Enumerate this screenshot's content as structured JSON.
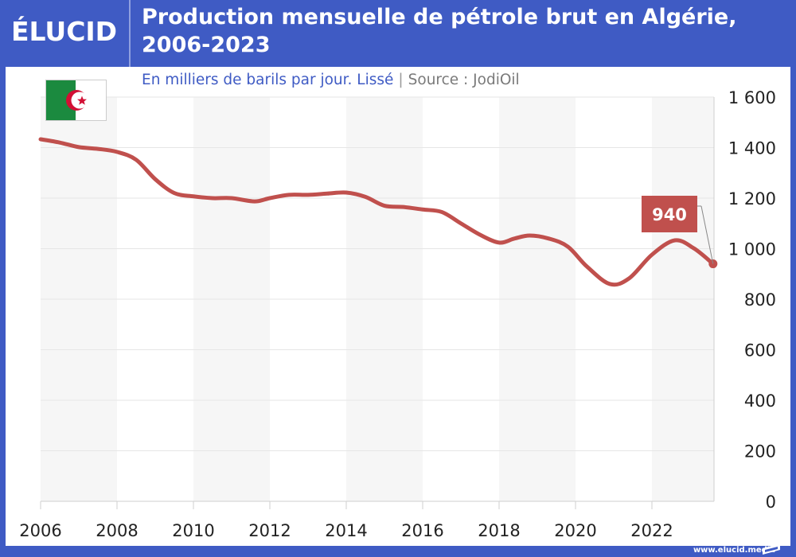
{
  "header": {
    "logo": "ÉLUCID",
    "title_line1": "Production mensuelle de pétrole brut en Algérie,",
    "title_line2": "2006-2023"
  },
  "subtitle": {
    "unit": "En milliers de barils par jour. Lissé",
    "separator": "|",
    "source": "Source : JodiOil"
  },
  "flag": {
    "country": "Algérie",
    "icon": "algeria-flag-icon"
  },
  "footer": {
    "url": "www.elucid.media"
  },
  "colors": {
    "brand": "#3f5bc4",
    "line": "#c0504d",
    "band": "#f6f6f6",
    "grid": "#e6e6e6"
  },
  "chart_data": {
    "type": "line",
    "title": "Production mensuelle de pétrole brut en Algérie, 2006-2023",
    "subtitle": "En milliers de barils par jour. Lissé",
    "xlabel": "",
    "ylabel": "",
    "xlim": [
      2006,
      2023.6
    ],
    "ylim": [
      0,
      1600
    ],
    "x_ticks": [
      2006,
      2008,
      2010,
      2012,
      2014,
      2016,
      2018,
      2020,
      2022
    ],
    "x_tick_labels": [
      "2006",
      "2008",
      "2010",
      "2012",
      "2014",
      "2016",
      "2018",
      "2020",
      "2022"
    ],
    "y_ticks": [
      0,
      200,
      400,
      600,
      800,
      1000,
      1200,
      1400,
      1600
    ],
    "y_tick_labels": [
      "0",
      "200",
      "400",
      "600",
      "800",
      "1 000",
      "1 200",
      "1 400",
      "1 600"
    ],
    "y_axis_side": "right",
    "grid": true,
    "legend": "none",
    "series": [
      {
        "name": "Production de pétrole brut",
        "x": [
          2006.0,
          2006.5,
          2007.0,
          2007.5,
          2008.0,
          2008.5,
          2009.0,
          2009.5,
          2010.0,
          2010.5,
          2011.0,
          2011.6,
          2012.0,
          2012.5,
          2013.0,
          2013.5,
          2014.0,
          2014.5,
          2015.0,
          2015.5,
          2016.0,
          2016.5,
          2017.0,
          2017.5,
          2018.0,
          2018.4,
          2018.8,
          2019.3,
          2019.8,
          2020.3,
          2020.9,
          2021.4,
          2022.0,
          2022.6,
          2023.1,
          2023.6
        ],
        "values": [
          1433,
          1420,
          1402,
          1395,
          1383,
          1352,
          1275,
          1220,
          1207,
          1200,
          1200,
          1187,
          1200,
          1213,
          1213,
          1218,
          1222,
          1205,
          1170,
          1165,
          1155,
          1145,
          1100,
          1055,
          1024,
          1040,
          1052,
          1040,
          1008,
          929,
          860,
          882,
          976,
          1033,
          1001,
          940
        ]
      }
    ],
    "annotations": [
      {
        "text": "940",
        "x": 2023.6,
        "y": 940,
        "type": "last-value-callout"
      }
    ]
  }
}
